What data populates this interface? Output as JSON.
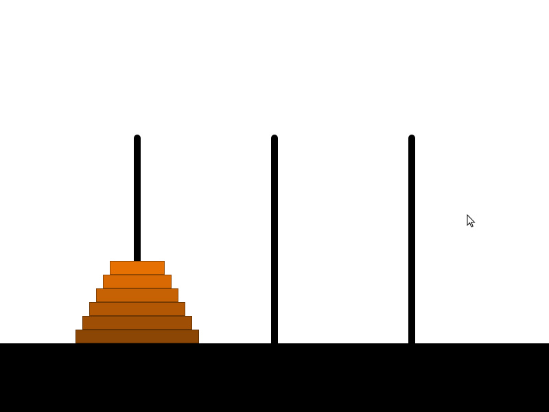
{
  "colors": {
    "background": "#ffffff",
    "peg": "#000000",
    "ground": "#000000"
  },
  "pegs": [
    {
      "id": 1,
      "disks": [
        6,
        5,
        4,
        3,
        2,
        1
      ]
    },
    {
      "id": 2,
      "disks": []
    },
    {
      "id": 3,
      "disks": []
    }
  ],
  "disks": [
    {
      "size": 1,
      "color": "#e77002"
    },
    {
      "size": 2,
      "color": "#d96a03"
    },
    {
      "size": 3,
      "color": "#c66104"
    },
    {
      "size": 4,
      "color": "#b25805"
    },
    {
      "size": 5,
      "color": "#9e4f05"
    },
    {
      "size": 6,
      "color": "#8b4606"
    }
  ],
  "cursor": {
    "icon": "arrow-cursor-icon"
  }
}
